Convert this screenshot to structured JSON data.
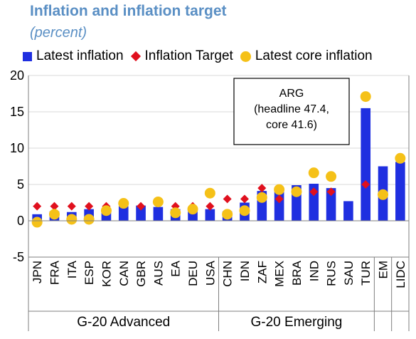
{
  "chart_data": {
    "type": "bar",
    "title": "Inflation and inflation target",
    "subtitle": "(percent)",
    "ylim": [
      -5,
      20
    ],
    "yticks": [
      20,
      15,
      10,
      5,
      0,
      -5
    ],
    "categories": [
      "JPN",
      "FRA",
      "ITA",
      "ESP",
      "KOR",
      "CAN",
      "GBR",
      "AUS",
      "EA",
      "DEU",
      "USA",
      "CHN",
      "IDN",
      "ZAF",
      "MEX",
      "BRA",
      "IND",
      "RUS",
      "SAU",
      "TUR",
      "EM",
      "LIDC"
    ],
    "series": [
      {
        "name": "Latest inflation",
        "kind": "bar",
        "color": "#1f2fe0",
        "values": [
          0.9,
          1.3,
          1.2,
          1.6,
          1.5,
          2.0,
          2.1,
          1.9,
          1.6,
          1.8,
          1.6,
          1.3,
          2.5,
          4.1,
          4.4,
          4.9,
          5.1,
          4.5,
          2.7,
          15.5,
          7.5,
          8.1
        ]
      },
      {
        "name": "Inflation Target",
        "kind": "diamond",
        "color": "#e0101e",
        "values": [
          2.0,
          2.0,
          2.0,
          2.0,
          2.0,
          null,
          2.0,
          null,
          2.0,
          2.0,
          2.0,
          3.0,
          3.0,
          4.5,
          3.0,
          4.0,
          4.0,
          4.0,
          null,
          5.0,
          null,
          null
        ]
      },
      {
        "name": "Latest core inflation",
        "kind": "dot",
        "color": "#f5c118",
        "values": [
          -0.2,
          0.9,
          0.2,
          0.2,
          1.4,
          2.4,
          null,
          2.6,
          1.1,
          1.6,
          3.8,
          0.9,
          1.4,
          3.2,
          4.3,
          4.0,
          6.6,
          6.1,
          null,
          17.1,
          3.6,
          8.6
        ]
      }
    ],
    "groups": [
      {
        "label": "G-20 Advanced",
        "start": 0,
        "end": 10
      },
      {
        "label": "G-20 Emerging",
        "start": 11,
        "end": 19
      }
    ],
    "annotation": {
      "lines": [
        "ARG",
        "(headline 47.4,",
        "core 41.6)"
      ]
    },
    "grid": "horizontal",
    "legend_position": "top"
  }
}
